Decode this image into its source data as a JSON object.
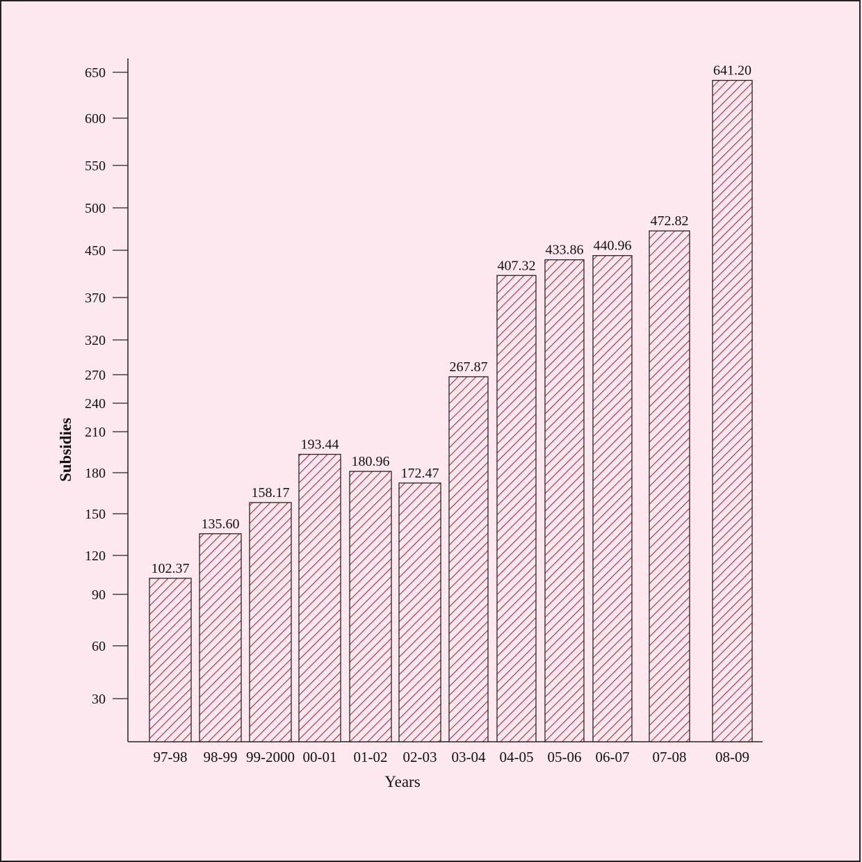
{
  "chart_data": {
    "type": "bar",
    "xlabel": "Years",
    "ylabel": "Subsidies",
    "categories": [
      "97-98",
      "98-99",
      "99-2000",
      "00-01",
      "01-02",
      "02-03",
      "03-04",
      "04-05",
      "05-06",
      "06-07",
      "07-08",
      "08-09"
    ],
    "values": [
      102.37,
      135.6,
      158.17,
      193.44,
      180.96,
      172.47,
      267.87,
      407.32,
      433.86,
      440.96,
      472.82,
      641.2
    ],
    "value_labels": [
      "102.37",
      "135.60",
      "158.17",
      "193.44",
      "180.96",
      "172.47",
      "267.87",
      "407.32",
      "433.86",
      "440.96",
      "472.82",
      "641.20"
    ],
    "y_ticks": [
      30,
      60,
      90,
      120,
      150,
      180,
      210,
      240,
      270,
      320,
      370,
      450,
      500,
      550,
      600,
      650
    ],
    "grid": false,
    "legend": "none",
    "colors": {
      "bar_hatch": "#b0283c",
      "bar_outline": "#222222",
      "background": "#fde8f0"
    }
  }
}
